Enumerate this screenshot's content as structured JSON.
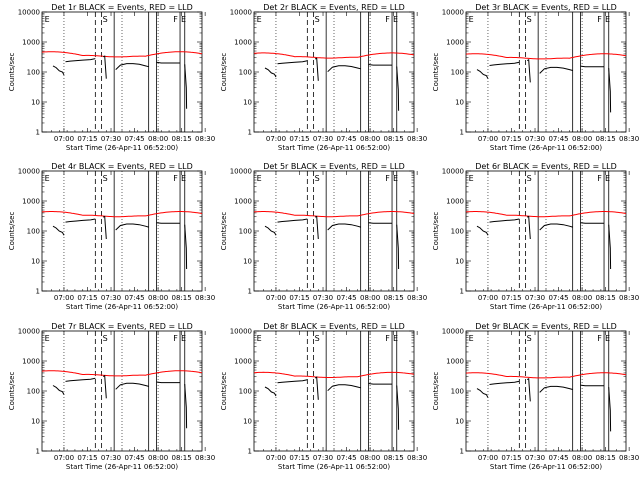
{
  "chart_data": {
    "type": "line",
    "layout": "3x3 grid of panels",
    "x_tick_labels": [
      "07:00",
      "07:15",
      "07:30",
      "07:45",
      "08:00",
      "08:15",
      "08:30"
    ],
    "x_range_minutes": [
      -6,
      96
    ],
    "xlabel": "Start Time (26-Apr-11 06:52:00)",
    "ylabel": "Counts/sec",
    "y_scale": "log",
    "ylim": [
      1,
      10000
    ],
    "y_tick_labels": [
      "1",
      "10",
      "100",
      "1000",
      "10000"
    ],
    "legend": "in title: BLACK = Events, RED = LLD",
    "series_colors": {
      "events": "#000000",
      "lld": "#ff0000"
    },
    "annotations": {
      "dotted_lines_minutes": [
        8,
        45,
        68
      ],
      "dashed_lines_minutes": [
        28,
        32
      ],
      "solid_lines_minutes": [
        40,
        62,
        67,
        82,
        85
      ],
      "letters": [
        {
          "text": "E",
          "at_minutes": -5
        },
        {
          "text": "S",
          "at_minutes": 32
        },
        {
          "text": "F",
          "at_minutes": 77
        },
        {
          "text": "E",
          "at_minutes": 82
        }
      ]
    },
    "panels": [
      {
        "title": "Det 1r BLACK = Events, RED = LLD",
        "red_base": 350,
        "black_base": 200
      },
      {
        "title": "Det 2r BLACK = Events, RED = LLD",
        "red_base": 320,
        "black_base": 170
      },
      {
        "title": "Det 3r BLACK = Events, RED = LLD",
        "red_base": 300,
        "black_base": 150
      },
      {
        "title": "Det 4r BLACK = Events, RED = LLD",
        "red_base": 330,
        "black_base": 180
      },
      {
        "title": "Det 5r BLACK = Events, RED = LLD",
        "red_base": 330,
        "black_base": 180
      },
      {
        "title": "Det 6r BLACK = Events, RED = LLD",
        "red_base": 330,
        "black_base": 180
      },
      {
        "title": "Det 7r BLACK = Events, RED = LLD",
        "red_base": 350,
        "black_base": 190
      },
      {
        "title": "Det 8r BLACK = Events, RED = LLD",
        "red_base": 310,
        "black_base": 170
      },
      {
        "title": "Det 9r BLACK = Events, RED = LLD",
        "red_base": 300,
        "black_base": 150
      }
    ]
  }
}
